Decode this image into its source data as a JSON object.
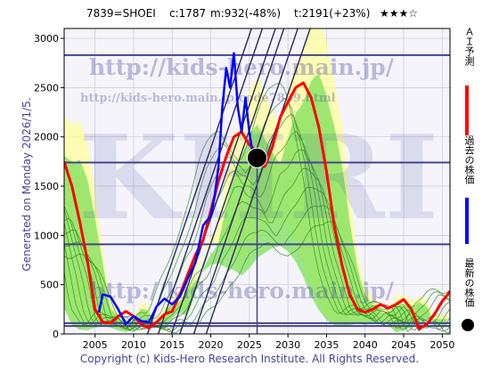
{
  "header": {
    "code_name": "7839=SHOEI",
    "current": "c:1787",
    "min_info": "m:932(-48%)",
    "target_info": "t:2191(+23%)",
    "stars": "★★★☆"
  },
  "generated_text": "Generated on Monday 2026/1/5.",
  "footer_text": "Copyright (c) Kids-Hero Research Institute. All Rights Reserved.",
  "watermarks": {
    "url_main": "http://kids-hero.main.jp/",
    "url_code": "http://kids-hero.main.jp/code7839.html",
    "url_bottom": "http://kids-hero.main.jp/",
    "logo": "KHRI"
  },
  "legend": {
    "ai_forecast": "ＡＩ予測",
    "past_price": "過去の株価",
    "latest_price": "最新の株価"
  },
  "colors": {
    "forecast": "#ff0000",
    "past": "#0000ff",
    "latest": "#000000",
    "band_green": "#66dd44",
    "band_yellow": "#ffff88",
    "hline": "#44448a",
    "diag": "#2a2a5a"
  },
  "chart_data": {
    "type": "line",
    "x_ticks": [
      2005,
      2010,
      2015,
      2020,
      2025,
      2030,
      2035,
      2040,
      2045,
      2050
    ],
    "y_ticks": [
      0,
      500,
      1000,
      1500,
      2000,
      2500,
      3000
    ],
    "xlim": [
      2001,
      2051
    ],
    "ylim": [
      0,
      3100
    ],
    "hlines": [
      2830,
      1740,
      910,
      110,
      80
    ],
    "vline_x": 2026,
    "latest_point": {
      "x": 2026,
      "y": 1787
    },
    "series": [
      {
        "name": "ＡＩ予測",
        "color": "#ff0000",
        "x": [
          2001,
          2002,
          2003,
          2004,
          2005,
          2006,
          2007,
          2008,
          2009,
          2010,
          2011,
          2012,
          2013,
          2014,
          2015,
          2016,
          2017,
          2018,
          2019,
          2020,
          2021,
          2022,
          2023,
          2024,
          2025,
          2026,
          2027,
          2028,
          2029,
          2030,
          2031,
          2032,
          2033,
          2034,
          2035,
          2036,
          2037,
          2038,
          2039,
          2040,
          2041,
          2042,
          2043,
          2044,
          2045,
          2046,
          2047,
          2048,
          2049,
          2050,
          2051
        ],
        "values": [
          1750,
          1500,
          1150,
          750,
          250,
          120,
          110,
          180,
          230,
          180,
          100,
          60,
          120,
          200,
          230,
          400,
          600,
          800,
          950,
          1250,
          1550,
          1800,
          2000,
          2050,
          1920,
          1850,
          1700,
          1900,
          2200,
          2350,
          2500,
          2550,
          2400,
          2100,
          1650,
          1100,
          700,
          400,
          250,
          220,
          250,
          300,
          260,
          300,
          350,
          250,
          50,
          100,
          200,
          330,
          430
        ]
      },
      {
        "name": "過去の株価",
        "color": "#0000ff",
        "x": [
          2005.5,
          2006,
          2007,
          2008,
          2009,
          2010,
          2011,
          2012,
          2013,
          2014,
          2015,
          2016,
          2017,
          2018,
          2019,
          2020,
          2020.5,
          2021,
          2021.5,
          2022,
          2022.5,
          2023,
          2023.5,
          2024,
          2024.5,
          2025,
          2025.5,
          2026
        ],
        "values": [
          220,
          400,
          380,
          250,
          100,
          180,
          130,
          120,
          280,
          360,
          300,
          380,
          560,
          720,
          1100,
          1200,
          1400,
          1700,
          2300,
          2700,
          2500,
          2850,
          2300,
          2050,
          2400,
          2050,
          1800,
          1787
        ]
      }
    ]
  }
}
